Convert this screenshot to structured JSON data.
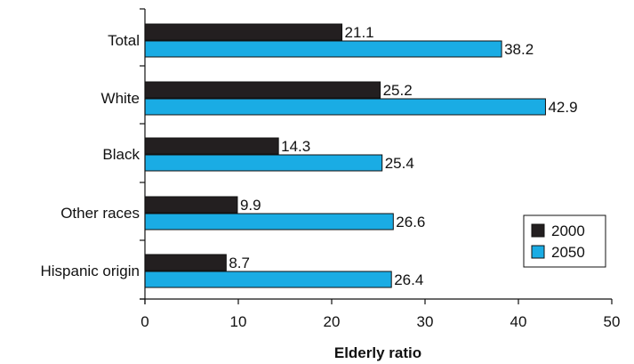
{
  "chart_data": {
    "type": "bar",
    "orientation": "horizontal",
    "categories": [
      "Total",
      "White",
      "Black",
      "Other races",
      "Hispanic origin"
    ],
    "series": [
      {
        "name": "2000",
        "values": [
          21.1,
          25.2,
          14.3,
          9.9,
          8.7
        ],
        "color": "#231f20"
      },
      {
        "name": "2050",
        "values": [
          38.2,
          42.9,
          25.4,
          26.6,
          26.4
        ],
        "color": "#1aace4"
      }
    ],
    "xlabel": "Elderly ratio",
    "xlim": [
      0,
      50
    ],
    "xticks": [
      0,
      10,
      20,
      30,
      40,
      50
    ],
    "grid": false,
    "legend_position": "bottom-right"
  }
}
